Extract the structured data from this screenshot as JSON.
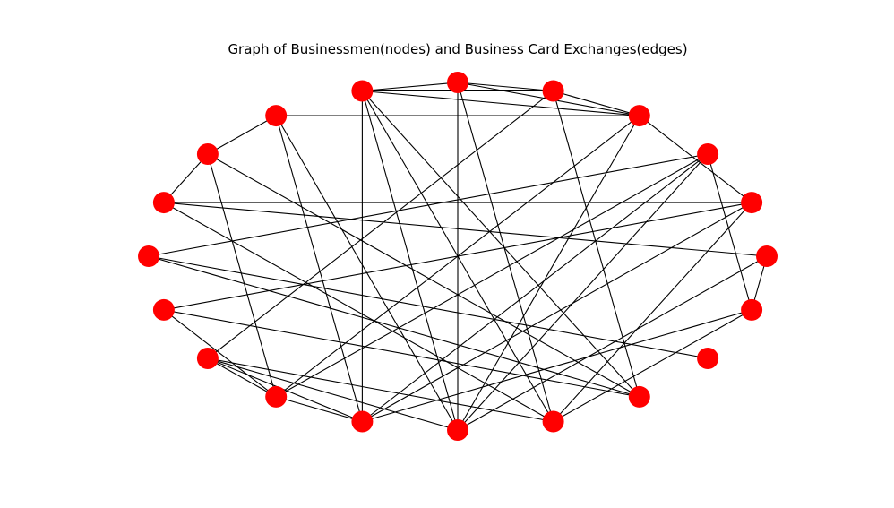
{
  "title": "Graph of Businessmen(nodes) and Business Card Exchanges(edges)",
  "colors": {
    "node": "#ff0000",
    "edge": "#000000",
    "background": "#ffffff"
  },
  "graph": {
    "node_count": 20,
    "nodes": [
      0,
      1,
      2,
      3,
      4,
      5,
      6,
      7,
      8,
      9,
      10,
      11,
      12,
      13,
      14,
      15,
      16,
      17,
      18,
      19
    ],
    "edges": [
      [
        5,
        4
      ],
      [
        5,
        3
      ],
      [
        5,
        6
      ],
      [
        5,
        15
      ],
      [
        5,
        16
      ],
      [
        4,
        3
      ],
      [
        4,
        6
      ],
      [
        4,
        12
      ],
      [
        4,
        17
      ],
      [
        6,
        3
      ],
      [
        6,
        14
      ],
      [
        6,
        15
      ],
      [
        6,
        16
      ],
      [
        6,
        17
      ],
      [
        7,
        3
      ],
      [
        7,
        8
      ],
      [
        7,
        14
      ],
      [
        7,
        15
      ],
      [
        8,
        9
      ],
      [
        8,
        17
      ],
      [
        8,
        13
      ],
      [
        9,
        0
      ],
      [
        9,
        1
      ],
      [
        9,
        16
      ],
      [
        10,
        2
      ],
      [
        10,
        17
      ],
      [
        10,
        18
      ],
      [
        11,
        17
      ],
      [
        11,
        1
      ],
      [
        11,
        13
      ],
      [
        12,
        16
      ],
      [
        12,
        15
      ],
      [
        12,
        13
      ],
      [
        12,
        14
      ],
      [
        13,
        14
      ],
      [
        13,
        2
      ],
      [
        13,
        3
      ],
      [
        14,
        1
      ],
      [
        14,
        2
      ],
      [
        14,
        19
      ],
      [
        15,
        2
      ],
      [
        15,
        0
      ],
      [
        15,
        3
      ],
      [
        16,
        1
      ],
      [
        16,
        19
      ],
      [
        3,
        1
      ],
      [
        19,
        2
      ],
      [
        19,
        0
      ]
    ]
  }
}
